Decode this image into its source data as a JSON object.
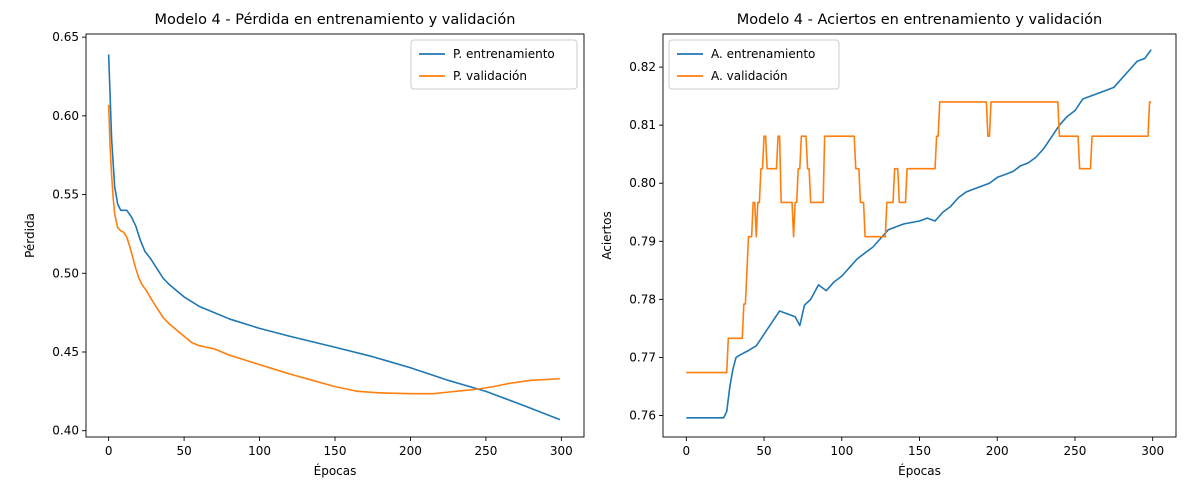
{
  "chart_data": [
    {
      "type": "line",
      "title": "Modelo 4 - Pérdida en entrenamiento y validación",
      "xlabel": "Épocas",
      "ylabel": "Pérdida",
      "xlim": [
        -15,
        315
      ],
      "ylim": [
        0.396,
        0.652
      ],
      "xticks": [
        0,
        50,
        100,
        150,
        200,
        250,
        300
      ],
      "yticks": [
        0.4,
        0.45,
        0.5,
        0.55,
        0.6,
        0.65
      ],
      "ytick_labels": [
        "0.40",
        "0.45",
        "0.50",
        "0.55",
        "0.60",
        "0.65"
      ],
      "legend_position": "upper right",
      "series": [
        {
          "name": "P. entrenamiento",
          "color": "#1f77b4",
          "x": [
            0,
            2,
            4,
            6,
            8,
            10,
            12,
            15,
            18,
            21,
            24,
            28,
            32,
            36,
            40,
            45,
            50,
            60,
            70,
            80,
            100,
            120,
            150,
            175,
            200,
            225,
            250,
            275,
            299
          ],
          "y": [
            0.639,
            0.585,
            0.555,
            0.544,
            0.54,
            0.54,
            0.54,
            0.536,
            0.53,
            0.521,
            0.514,
            0.509,
            0.503,
            0.497,
            0.493,
            0.489,
            0.485,
            0.479,
            0.475,
            0.471,
            0.465,
            0.46,
            0.453,
            0.447,
            0.44,
            0.432,
            0.425,
            0.416,
            0.407
          ]
        },
        {
          "name": "P. validación",
          "color": "#ff7f0e",
          "x": [
            0,
            1,
            2,
            3,
            4,
            5,
            6,
            8,
            10,
            12,
            14,
            16,
            18,
            20,
            22,
            25,
            28,
            32,
            36,
            40,
            45,
            50,
            55,
            60,
            65,
            70,
            75,
            80,
            90,
            100,
            110,
            120,
            135,
            150,
            165,
            180,
            200,
            215,
            225,
            235,
            245,
            255,
            265,
            280,
            299
          ],
          "y": [
            0.607,
            0.58,
            0.562,
            0.548,
            0.538,
            0.533,
            0.529,
            0.527,
            0.526,
            0.523,
            0.517,
            0.51,
            0.503,
            0.497,
            0.493,
            0.489,
            0.484,
            0.478,
            0.472,
            0.468,
            0.464,
            0.46,
            0.456,
            0.454,
            0.453,
            0.452,
            0.45,
            0.448,
            0.445,
            0.442,
            0.439,
            0.436,
            0.432,
            0.428,
            0.425,
            0.424,
            0.4235,
            0.4235,
            0.4245,
            0.4255,
            0.4265,
            0.428,
            0.43,
            0.432,
            0.433
          ]
        }
      ]
    },
    {
      "type": "line",
      "title": "Modelo 4 - Aciertos en entrenamiento y validación",
      "xlabel": "Épocas",
      "ylabel": "Aciertos",
      "xlim": [
        -15,
        315
      ],
      "ylim": [
        0.7563,
        0.8257
      ],
      "xticks": [
        0,
        50,
        100,
        150,
        200,
        250,
        300
      ],
      "yticks": [
        0.76,
        0.77,
        0.78,
        0.79,
        0.8,
        0.81,
        0.82
      ],
      "ytick_labels": [
        "0.76",
        "0.77",
        "0.78",
        "0.79",
        "0.80",
        "0.81",
        "0.82"
      ],
      "legend_position": "upper left",
      "series": [
        {
          "name": "A. entrenamiento",
          "color": "#1f77b4",
          "x": [
            0,
            24,
            26,
            28,
            30,
            32,
            35,
            40,
            45,
            50,
            55,
            60,
            65,
            70,
            73,
            76,
            80,
            85,
            90,
            95,
            100,
            105,
            110,
            115,
            120,
            125,
            130,
            135,
            140,
            150,
            155,
            160,
            165,
            170,
            175,
            180,
            185,
            190,
            195,
            200,
            205,
            210,
            215,
            220,
            225,
            230,
            235,
            240,
            245,
            250,
            255,
            260,
            265,
            270,
            275,
            280,
            285,
            290,
            295,
            299
          ],
          "y": [
            0.7596,
            0.7596,
            0.7607,
            0.765,
            0.768,
            0.77,
            0.7705,
            0.7712,
            0.772,
            0.774,
            0.776,
            0.778,
            0.7775,
            0.777,
            0.7755,
            0.779,
            0.78,
            0.7825,
            0.7815,
            0.783,
            0.784,
            0.7855,
            0.787,
            0.788,
            0.789,
            0.7905,
            0.792,
            0.7925,
            0.793,
            0.7935,
            0.794,
            0.7935,
            0.795,
            0.796,
            0.7975,
            0.7985,
            0.799,
            0.7995,
            0.8,
            0.801,
            0.8015,
            0.802,
            0.803,
            0.8035,
            0.8045,
            0.806,
            0.808,
            0.81,
            0.8115,
            0.8125,
            0.8145,
            0.815,
            0.8155,
            0.816,
            0.8165,
            0.818,
            0.8195,
            0.821,
            0.8215,
            0.823
          ]
        },
        {
          "name": "A. validación",
          "color": "#ff7f0e",
          "x": [
            0,
            26,
            27,
            36,
            37,
            38,
            39,
            40,
            42,
            43,
            44,
            45,
            46,
            47,
            48,
            49,
            50,
            51,
            52,
            53,
            54,
            55,
            56,
            58,
            59,
            60,
            61,
            62,
            63,
            64,
            68,
            69,
            70,
            71,
            72,
            73,
            74,
            75,
            76,
            77,
            78,
            79,
            80,
            81,
            82,
            83,
            88,
            89,
            100,
            101,
            108,
            109,
            111,
            112,
            114,
            115,
            124,
            125,
            128,
            129,
            133,
            134,
            136,
            137,
            138,
            139,
            140,
            141,
            142,
            143,
            160,
            161,
            162,
            163,
            183,
            184,
            193,
            194,
            195,
            196,
            239,
            240,
            252,
            253,
            260,
            261,
            297,
            298,
            299
          ],
          "y": [
            0.7674,
            0.7674,
            0.7733,
            0.7733,
            0.7792,
            0.7792,
            0.785,
            0.7908,
            0.7908,
            0.7967,
            0.7967,
            0.7908,
            0.7967,
            0.7967,
            0.8025,
            0.8025,
            0.8081,
            0.8081,
            0.8025,
            0.8025,
            0.8025,
            0.8025,
            0.8025,
            0.8025,
            0.8081,
            0.8081,
            0.7967,
            0.7967,
            0.7967,
            0.7967,
            0.7967,
            0.7908,
            0.7967,
            0.7967,
            0.8025,
            0.8025,
            0.8081,
            0.8081,
            0.8081,
            0.8081,
            0.8025,
            0.8025,
            0.7967,
            0.7967,
            0.7967,
            0.7967,
            0.7967,
            0.8081,
            0.8081,
            0.8081,
            0.8081,
            0.8025,
            0.8025,
            0.7967,
            0.7967,
            0.7908,
            0.7908,
            0.7908,
            0.7908,
            0.7967,
            0.7967,
            0.8025,
            0.8025,
            0.7967,
            0.7967,
            0.7967,
            0.7967,
            0.7967,
            0.8025,
            0.8025,
            0.8025,
            0.8081,
            0.8081,
            0.814,
            0.814,
            0.814,
            0.814,
            0.8081,
            0.8081,
            0.814,
            0.814,
            0.8081,
            0.8081,
            0.8025,
            0.8025,
            0.8081,
            0.8081,
            0.814,
            0.814
          ]
        }
      ]
    }
  ]
}
